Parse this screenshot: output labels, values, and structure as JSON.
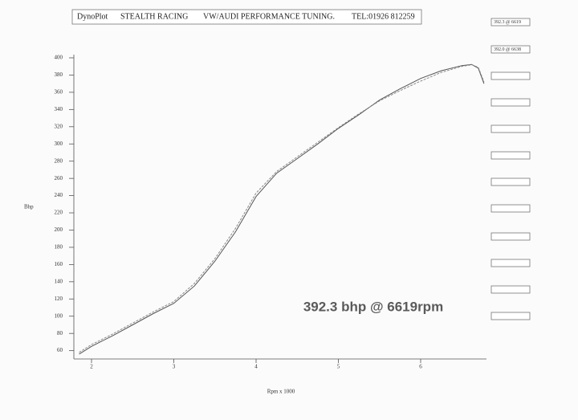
{
  "chart_data": {
    "type": "line",
    "header": [
      "DynoPlot",
      "STEALTH RACING",
      "VW/AUDI PERFORMANCE TUNING.",
      "TEL:01926 812259"
    ],
    "y_label": "Bhp",
    "x_label": "Rpm x 1000",
    "annotation": "392.3 bhp @ 6619rpm",
    "x": [
      1.85,
      2.0,
      2.25,
      2.5,
      2.75,
      3.0,
      3.25,
      3.5,
      3.75,
      4.0,
      4.25,
      4.5,
      4.75,
      5.0,
      5.25,
      5.5,
      5.75,
      6.0,
      6.25,
      6.5,
      6.62,
      6.7,
      6.77
    ],
    "series": [
      {
        "name": "392.3 @ 6619",
        "color": "#555555",
        "values": [
          56,
          65,
          77,
          90,
          103,
          115,
          135,
          164,
          198,
          239,
          266,
          283,
          300,
          318,
          334,
          351,
          364,
          376,
          385,
          391,
          392.3,
          388,
          370
        ]
      },
      {
        "name": "392.0 @ 6638",
        "color": "#8a8a8a",
        "values": [
          58,
          67,
          79,
          92,
          105,
          117,
          138,
          167,
          202,
          243,
          268,
          285,
          302,
          319,
          335,
          350,
          362,
          373,
          383,
          390,
          392,
          389,
          372
        ]
      }
    ],
    "xlim": [
      1.8,
      6.8
    ],
    "xticks": [
      2,
      3,
      4,
      5,
      6
    ],
    "ylim": [
      55,
      400
    ],
    "yticks": [
      60,
      80,
      100,
      120,
      140,
      160,
      180,
      200,
      220,
      240,
      260,
      280,
      300,
      320,
      340,
      360,
      380,
      400
    ]
  }
}
